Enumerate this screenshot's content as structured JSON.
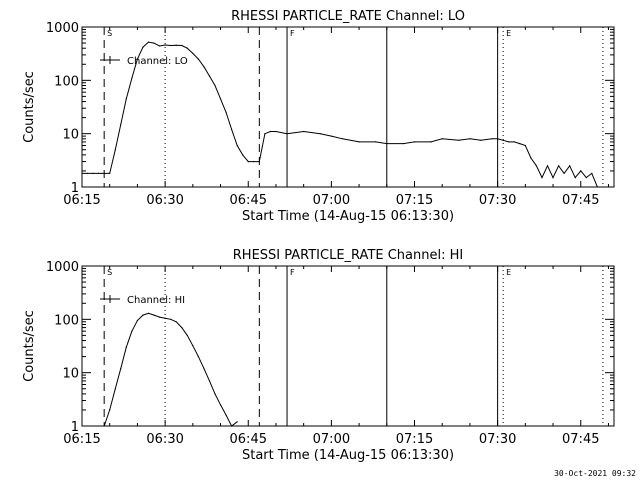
{
  "footer": "30-Oct-2021 09:32",
  "chart_data": [
    {
      "type": "line",
      "title": "RHESSI PARTICLE_RATE Channel: LO",
      "xlabel": "Start Time (14-Aug-15 06:13:30)",
      "ylabel": "Counts/sec",
      "legend": "Channel: LO",
      "legend_placement": "top-left",
      "y_scale": "log",
      "ylim": [
        1,
        1000
      ],
      "xlim": [
        "06:15",
        "07:51"
      ],
      "x_ticks": [
        "06:15",
        "06:30",
        "06:45",
        "07:00",
        "07:15",
        "07:30",
        "07:45"
      ],
      "y_ticks": [
        "1",
        "10",
        "100",
        "1000"
      ],
      "markers": [
        {
          "time": "06:19",
          "label": "S",
          "style": "dashed"
        },
        {
          "time": "06:47",
          "label": "",
          "style": "dashed"
        },
        {
          "time": "06:30",
          "label": "",
          "style": "dotted"
        },
        {
          "time": "06:52",
          "label": "F",
          "style": "solid"
        },
        {
          "time": "07:10",
          "label": "",
          "style": "solid"
        },
        {
          "time": "07:30",
          "label": "",
          "style": "solid"
        },
        {
          "time": "07:31",
          "label": "E",
          "style": "dotted"
        },
        {
          "time": "07:49",
          "label": "",
          "style": "dotted"
        }
      ],
      "series": [
        {
          "name": "Channel: LO",
          "x": [
            "06:15",
            "06:16",
            "06:17",
            "06:18",
            "06:19",
            "06:20",
            "06:21",
            "06:22",
            "06:23",
            "06:24",
            "06:25",
            "06:26",
            "06:27",
            "06:28",
            "06:29",
            "06:30",
            "06:31",
            "06:32",
            "06:33",
            "06:34",
            "06:35",
            "06:36",
            "06:37",
            "06:38",
            "06:39",
            "06:40",
            "06:41",
            "06:42",
            "06:43",
            "06:44",
            "06:45",
            "06:46",
            "06:47",
            "06:48",
            "06:49",
            "06:50",
            "06:52",
            "06:55",
            "06:58",
            "07:00",
            "07:02",
            "07:05",
            "07:08",
            "07:10",
            "07:13",
            "07:15",
            "07:18",
            "07:20",
            "07:23",
            "07:25",
            "07:27",
            "07:29",
            "07:30",
            "07:31",
            "07:32",
            "07:33",
            "07:34",
            "07:35",
            "07:36",
            "07:37",
            "07:38",
            "07:39",
            "07:40",
            "07:41",
            "07:42",
            "07:43",
            "07:44",
            "07:45",
            "07:46",
            "07:47",
            "07:48",
            "07:49"
          ],
          "values": [
            1.8,
            1.8,
            1.8,
            1.8,
            1.8,
            1.8,
            5,
            15,
            45,
            110,
            250,
            420,
            520,
            500,
            440,
            460,
            450,
            455,
            450,
            400,
            320,
            250,
            180,
            120,
            80,
            45,
            25,
            12,
            6,
            4,
            3,
            3,
            3,
            10,
            11,
            11,
            10,
            11,
            10,
            9,
            8,
            7,
            7,
            6.5,
            6.5,
            7,
            7,
            8,
            7.5,
            8,
            7.5,
            8,
            8,
            7.5,
            7,
            7,
            6.5,
            6,
            3.5,
            2.5,
            1.5,
            2.5,
            1.5,
            2.5,
            1.8,
            2.5,
            1.5,
            2,
            1.5,
            1.8,
            1,
            1
          ]
        }
      ]
    },
    {
      "type": "line",
      "title": "RHESSI PARTICLE_RATE Channel: HI",
      "xlabel": "Start Time (14-Aug-15 06:13:30)",
      "ylabel": "Counts/sec",
      "legend": "Channel: HI",
      "legend_placement": "top-left",
      "y_scale": "log",
      "ylim": [
        1,
        1000
      ],
      "xlim": [
        "06:15",
        "07:51"
      ],
      "x_ticks": [
        "06:15",
        "06:30",
        "06:45",
        "07:00",
        "07:15",
        "07:30",
        "07:45"
      ],
      "y_ticks": [
        "1",
        "10",
        "100",
        "1000"
      ],
      "markers": [
        {
          "time": "06:19",
          "label": "S",
          "style": "dashed"
        },
        {
          "time": "06:47",
          "label": "",
          "style": "dashed"
        },
        {
          "time": "06:30",
          "label": "",
          "style": "dotted"
        },
        {
          "time": "06:52",
          "label": "F",
          "style": "solid"
        },
        {
          "time": "07:10",
          "label": "",
          "style": "solid"
        },
        {
          "time": "07:30",
          "label": "",
          "style": "solid"
        },
        {
          "time": "07:31",
          "label": "E",
          "style": "dotted"
        },
        {
          "time": "07:49",
          "label": "",
          "style": "dotted"
        }
      ],
      "series": [
        {
          "name": "Channel: HI",
          "x": [
            "06:19",
            "06:20",
            "06:21",
            "06:22",
            "06:23",
            "06:24",
            "06:25",
            "06:26",
            "06:27",
            "06:28",
            "06:29",
            "06:30",
            "06:31",
            "06:32",
            "06:33",
            "06:34",
            "06:35",
            "06:36",
            "06:37",
            "06:38",
            "06:39",
            "06:40",
            "06:41",
            "06:42",
            "06:43"
          ],
          "values": [
            1,
            2,
            5,
            12,
            30,
            60,
            95,
            120,
            130,
            120,
            110,
            105,
            100,
            90,
            70,
            50,
            32,
            20,
            12,
            7,
            4,
            2.5,
            1.6,
            1,
            1.2
          ]
        }
      ]
    }
  ]
}
